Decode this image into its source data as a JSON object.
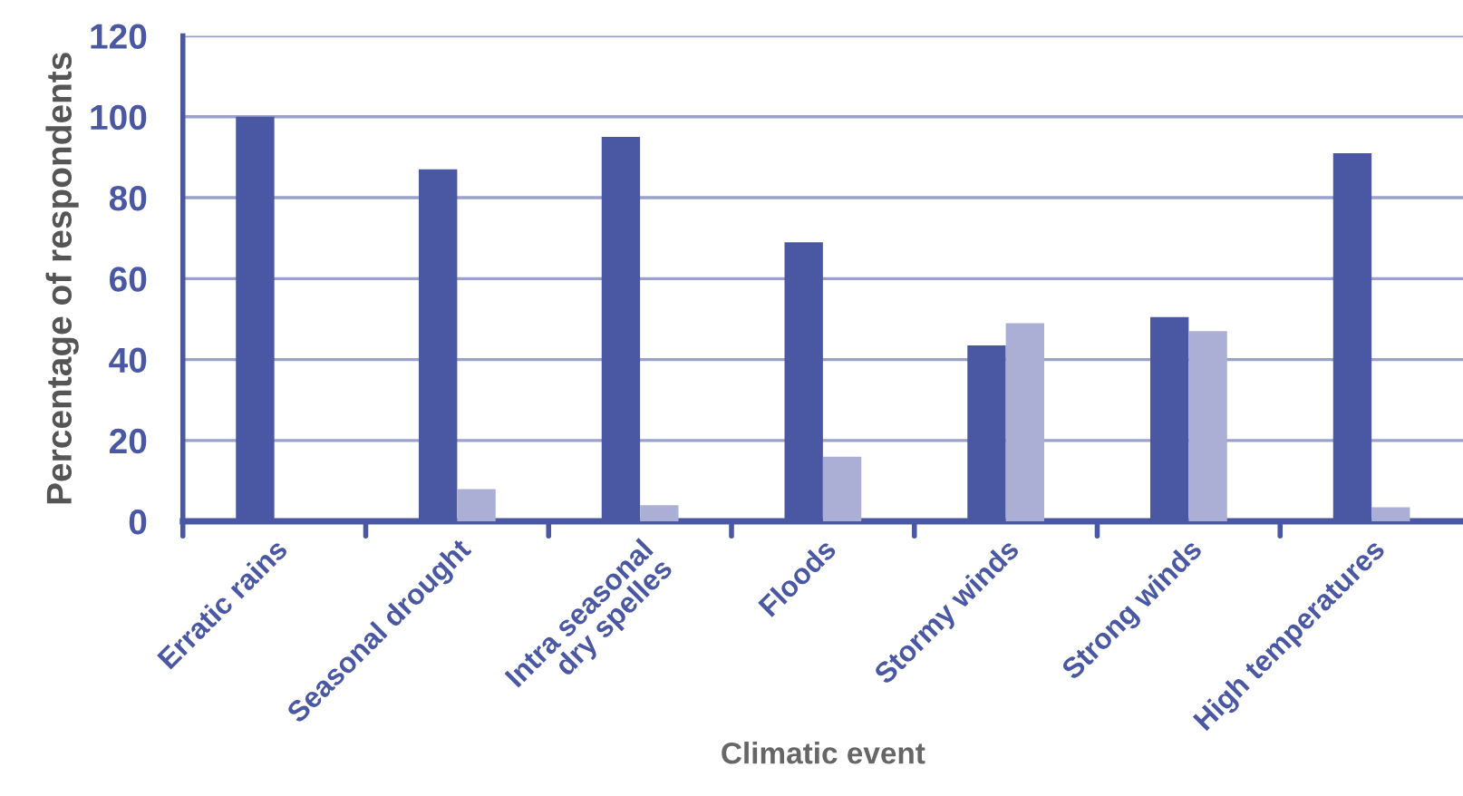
{
  "chart_data": {
    "type": "bar",
    "xlabel": "Climatic event",
    "ylabel": "Percentage of respondents",
    "categories": [
      "Erratic rains",
      "Seasonal drought",
      "Intra seasonal\ndry spelles",
      "Floods",
      "Stormy winds",
      "Strong winds",
      "High temperatures"
    ],
    "series": [
      {
        "color": "#4a58a3",
        "values": [
          100,
          87,
          95,
          69,
          43.5,
          50.5,
          91
        ]
      },
      {
        "color": "#abaed5",
        "values": [
          null,
          8,
          4,
          16,
          49,
          47,
          3.5
        ]
      }
    ],
    "ylim": [
      0,
      120
    ],
    "yticks": [
      0,
      20,
      40,
      60,
      80,
      100,
      120
    ],
    "grid": "y",
    "legend": false
  }
}
